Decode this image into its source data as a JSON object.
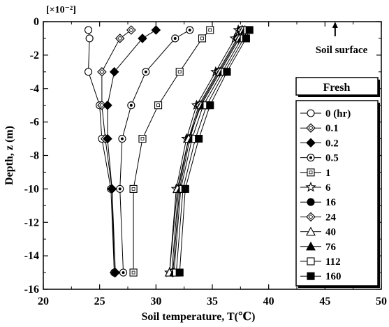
{
  "chart_data": {
    "type": "line",
    "xlabel": "Soil temperature, T(℃)",
    "ylabel": "Depth, z (m)",
    "xlim": [
      20,
      50
    ],
    "ylim": [
      -16,
      0
    ],
    "x_ticks": [
      "20",
      "25",
      "30",
      "35",
      "40",
      "45",
      "50"
    ],
    "y_ticks": [
      "0",
      "-2",
      "-4",
      "-6",
      "-8",
      "-10",
      "-12",
      "-14",
      "-16"
    ],
    "y_multiplier": "[×10⁻²]",
    "annotations": {
      "surface_label": "Soil surface",
      "condition_label": "Fresh"
    },
    "legend_position": "right",
    "grid": false,
    "series": [
      {
        "name": "0 (hr)",
        "marker": "circle-open",
        "points": [
          [
            24.0,
            -0.5
          ],
          [
            24.1,
            -1.0
          ],
          [
            24.0,
            -3.0
          ],
          [
            25.0,
            -5.0
          ],
          [
            25.2,
            -7.0
          ],
          [
            26.0,
            -10.0
          ],
          [
            26.3,
            -15.0
          ]
        ]
      },
      {
        "name": "0.1",
        "marker": "diamond-open",
        "points": [
          [
            27.8,
            -0.5
          ],
          [
            26.8,
            -1.0
          ],
          [
            25.2,
            -3.0
          ],
          [
            25.2,
            -5.0
          ],
          [
            25.5,
            -7.0
          ],
          [
            26.1,
            -10.0
          ],
          [
            26.3,
            -15.0
          ]
        ]
      },
      {
        "name": "0.2",
        "marker": "diamond-filled",
        "points": [
          [
            30.0,
            -0.5
          ],
          [
            28.8,
            -1.0
          ],
          [
            26.3,
            -3.0
          ],
          [
            25.7,
            -5.0
          ],
          [
            25.7,
            -7.0
          ],
          [
            26.1,
            -10.0
          ],
          [
            26.4,
            -15.0
          ]
        ]
      },
      {
        "name": "0.5",
        "marker": "circle-dot",
        "points": [
          [
            33.0,
            -0.5
          ],
          [
            31.7,
            -1.0
          ],
          [
            29.1,
            -3.0
          ],
          [
            27.8,
            -5.0
          ],
          [
            27.0,
            -7.0
          ],
          [
            26.8,
            -10.0
          ],
          [
            27.1,
            -15.0
          ]
        ]
      },
      {
        "name": "1",
        "marker": "square-dot",
        "points": [
          [
            34.8,
            -0.5
          ],
          [
            34.1,
            -1.0
          ],
          [
            32.1,
            -3.0
          ],
          [
            30.2,
            -5.0
          ],
          [
            28.8,
            -7.0
          ],
          [
            28.0,
            -10.0
          ],
          [
            28.0,
            -15.0
          ]
        ]
      },
      {
        "name": "6",
        "marker": "star-open",
        "points": [
          [
            37.3,
            -0.5
          ],
          [
            37.0,
            -1.0
          ],
          [
            35.3,
            -3.0
          ],
          [
            33.6,
            -5.0
          ],
          [
            32.7,
            -7.0
          ],
          [
            31.8,
            -10.0
          ],
          [
            31.2,
            -15.0
          ]
        ]
      },
      {
        "name": "16",
        "marker": "circle-filled",
        "points": [
          [
            37.5,
            -0.5
          ],
          [
            37.2,
            -1.0
          ],
          [
            35.5,
            -3.0
          ],
          [
            33.8,
            -5.0
          ],
          [
            32.9,
            -7.0
          ],
          [
            32.0,
            -10.0
          ],
          [
            31.4,
            -15.0
          ]
        ]
      },
      {
        "name": "24",
        "marker": "diamond-open",
        "points": [
          [
            37.6,
            -0.5
          ],
          [
            37.3,
            -1.0
          ],
          [
            35.6,
            -3.0
          ],
          [
            33.9,
            -5.0
          ],
          [
            33.0,
            -7.0
          ],
          [
            32.1,
            -10.0
          ],
          [
            31.5,
            -15.0
          ]
        ]
      },
      {
        "name": "40",
        "marker": "triangle-open",
        "points": [
          [
            37.7,
            -0.5
          ],
          [
            37.4,
            -1.0
          ],
          [
            35.7,
            -3.0
          ],
          [
            34.0,
            -5.0
          ],
          [
            32.9,
            -7.0
          ],
          [
            31.9,
            -10.0
          ],
          [
            31.2,
            -15.0
          ]
        ]
      },
      {
        "name": "76",
        "marker": "triangle-filled",
        "points": [
          [
            37.9,
            -0.5
          ],
          [
            37.6,
            -1.0
          ],
          [
            35.9,
            -3.0
          ],
          [
            34.2,
            -5.0
          ],
          [
            33.2,
            -7.0
          ],
          [
            32.2,
            -10.0
          ],
          [
            31.6,
            -15.0
          ]
        ]
      },
      {
        "name": "112",
        "marker": "square-open",
        "points": [
          [
            38.1,
            -0.5
          ],
          [
            37.8,
            -1.0
          ],
          [
            36.1,
            -3.0
          ],
          [
            34.5,
            -5.0
          ],
          [
            33.5,
            -7.0
          ],
          [
            32.4,
            -10.0
          ],
          [
            31.8,
            -15.0
          ]
        ]
      },
      {
        "name": "160",
        "marker": "square-filled",
        "points": [
          [
            38.3,
            -0.5
          ],
          [
            38.0,
            -1.0
          ],
          [
            36.3,
            -3.0
          ],
          [
            34.8,
            -5.0
          ],
          [
            33.8,
            -7.0
          ],
          [
            32.6,
            -10.0
          ],
          [
            32.1,
            -15.0
          ]
        ]
      }
    ]
  }
}
